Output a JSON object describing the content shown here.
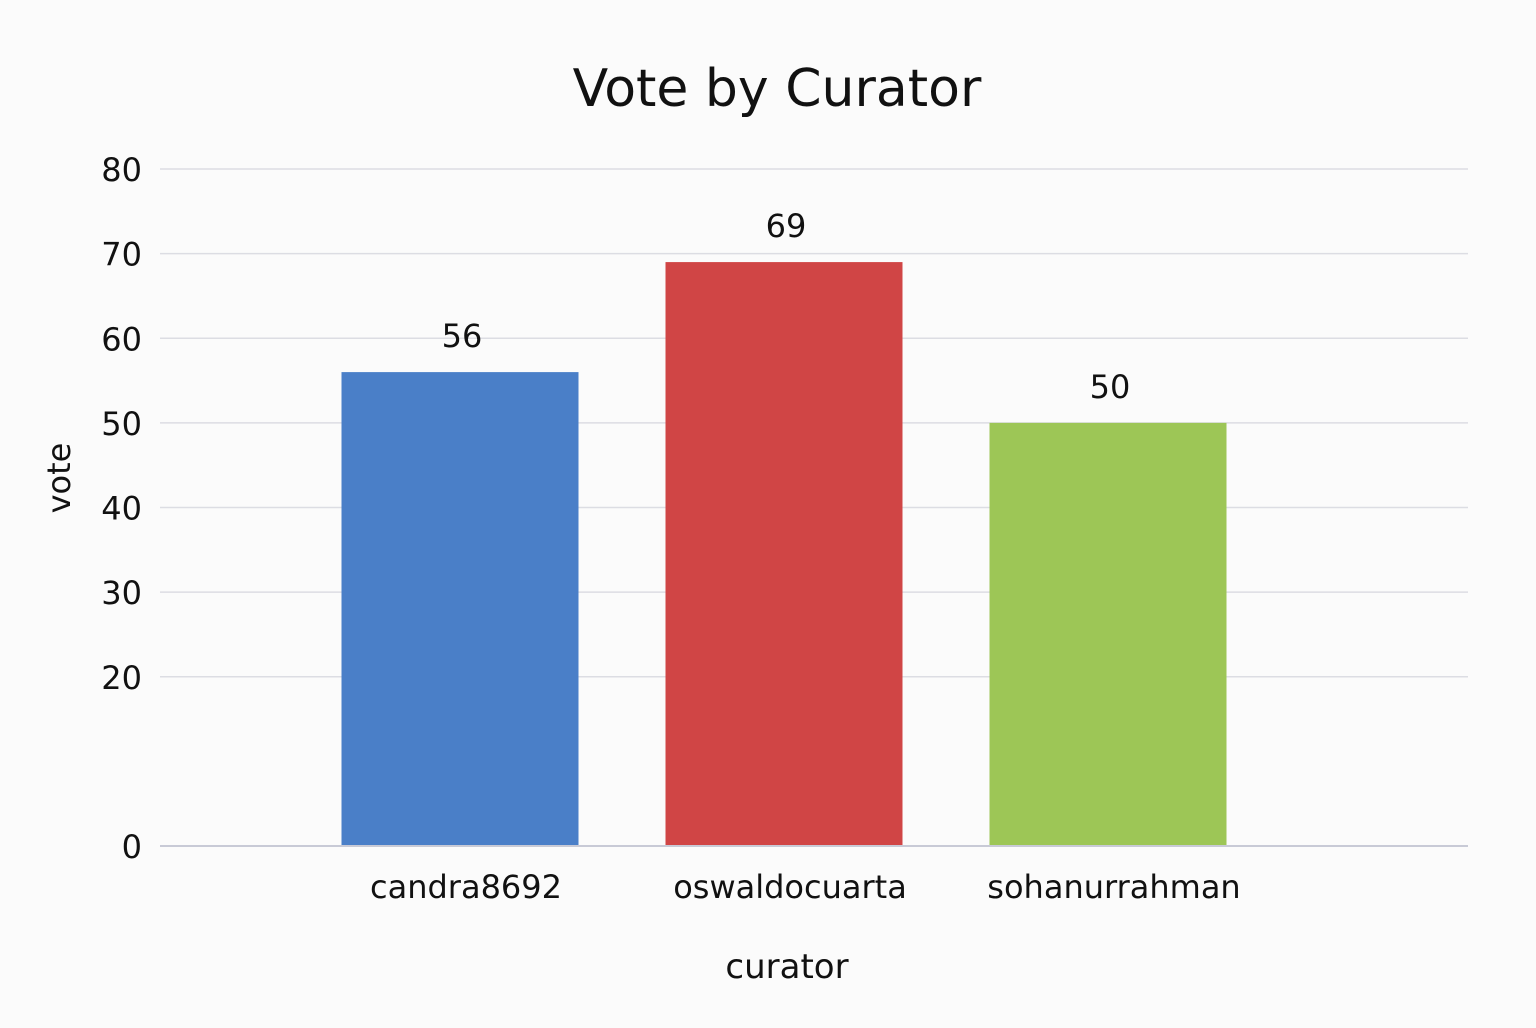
{
  "chart_data": {
    "type": "bar",
    "title": "Vote by Curator",
    "xlabel": "curator",
    "ylabel": "vote",
    "categories": [
      "candra8692",
      "oswaldocuarta",
      "sohanurrahman"
    ],
    "values": [
      56,
      69,
      50
    ],
    "data_labels": [
      "56",
      "69",
      "50"
    ],
    "colors": [
      "#4a7fc8",
      "#d04545",
      "#9dc656"
    ],
    "ylim": [
      0,
      80
    ],
    "yticks": [
      0,
      20,
      30,
      40,
      50,
      60,
      70,
      80
    ],
    "grid": true,
    "legend": "none"
  }
}
